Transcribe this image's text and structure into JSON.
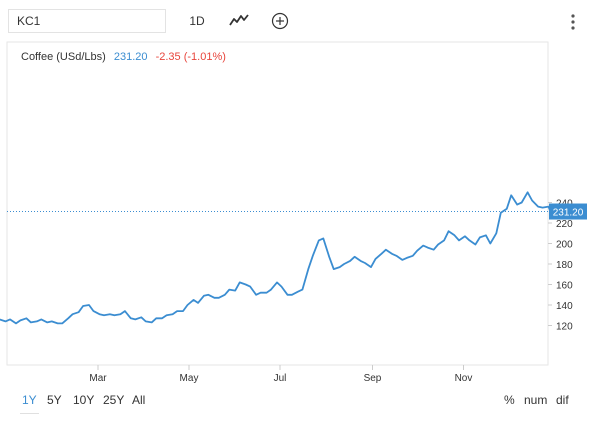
{
  "toolbar": {
    "symbol": "KC1",
    "period": "1D",
    "chart_type_icon": "line-chart-icon",
    "add_icon": "plus-circle-icon",
    "menu_icon": "vertical-dots-icon"
  },
  "legend": {
    "name": "Coffee (USd/Lbs)",
    "last": "231.20",
    "change": "-2.35 (-1.01%)"
  },
  "ranges": [
    "1Y",
    "5Y",
    "10Y",
    "25Y",
    "All"
  ],
  "active_range": "1Y",
  "modes": [
    "%",
    "num",
    "dif"
  ],
  "colors": {
    "line": "#3b8dd1",
    "negative": "#e8453c",
    "grid": "#e6e6e6",
    "axis_text": "#333333"
  },
  "chart_data": {
    "type": "line",
    "title": "Coffee (USd/Lbs)",
    "xlabel": "",
    "ylabel": "",
    "x_ticks": [
      "Mar",
      "May",
      "Jul",
      "Sep",
      "Nov"
    ],
    "y_ticks": [
      "120",
      "140",
      "160",
      "180",
      "200",
      "220",
      "240"
    ],
    "ylim": [
      100,
      250
    ],
    "last_value": 231.2,
    "last_value_label": "231.20",
    "grid": true,
    "series": [
      {
        "name": "Coffee (USd/Lbs)",
        "points": [
          [
            "2019-12-26",
            126
          ],
          [
            "2019-12-30",
            124
          ],
          [
            "2020-01-02",
            126
          ],
          [
            "2020-01-06",
            122
          ],
          [
            "2020-01-09",
            125
          ],
          [
            "2020-01-13",
            127
          ],
          [
            "2020-01-16",
            123
          ],
          [
            "2020-01-20",
            124
          ],
          [
            "2020-01-23",
            126
          ],
          [
            "2020-01-27",
            123
          ],
          [
            "2020-01-30",
            124
          ],
          [
            "2020-02-03",
            122
          ],
          [
            "2020-02-06",
            122
          ],
          [
            "2020-02-10",
            127
          ],
          [
            "2020-02-13",
            131
          ],
          [
            "2020-02-17",
            133
          ],
          [
            "2020-02-20",
            139
          ],
          [
            "2020-02-24",
            140
          ],
          [
            "2020-02-27",
            134
          ],
          [
            "2020-03-02",
            131
          ],
          [
            "2020-03-05",
            130
          ],
          [
            "2020-03-09",
            131
          ],
          [
            "2020-03-12",
            130
          ],
          [
            "2020-03-16",
            131
          ],
          [
            "2020-03-19",
            134
          ],
          [
            "2020-03-23",
            127
          ],
          [
            "2020-03-26",
            126
          ],
          [
            "2020-03-30",
            128
          ],
          [
            "2020-04-02",
            124
          ],
          [
            "2020-04-06",
            123
          ],
          [
            "2020-04-09",
            127
          ],
          [
            "2020-04-13",
            127
          ],
          [
            "2020-04-16",
            130
          ],
          [
            "2020-04-20",
            131
          ],
          [
            "2020-04-23",
            134
          ],
          [
            "2020-04-27",
            134
          ],
          [
            "2020-04-30",
            140
          ],
          [
            "2020-05-04",
            145
          ],
          [
            "2020-05-07",
            142
          ],
          [
            "2020-05-11",
            149
          ],
          [
            "2020-05-14",
            150
          ],
          [
            "2020-05-18",
            147
          ],
          [
            "2020-05-21",
            147
          ],
          [
            "2020-05-25",
            150
          ],
          [
            "2020-05-28",
            155
          ],
          [
            "2020-06-01",
            154
          ],
          [
            "2020-06-04",
            162
          ],
          [
            "2020-06-08",
            160
          ],
          [
            "2020-06-11",
            158
          ],
          [
            "2020-06-15",
            150
          ],
          [
            "2020-06-18",
            152
          ],
          [
            "2020-06-22",
            152
          ],
          [
            "2020-06-25",
            155
          ],
          [
            "2020-06-29",
            162
          ],
          [
            "2020-07-02",
            158
          ],
          [
            "2020-07-06",
            150
          ],
          [
            "2020-07-09",
            150
          ],
          [
            "2020-07-13",
            153
          ],
          [
            "2020-07-16",
            155
          ],
          [
            "2020-07-20",
            175
          ],
          [
            "2020-07-23",
            188
          ],
          [
            "2020-07-27",
            203
          ],
          [
            "2020-07-30",
            205
          ],
          [
            "2020-08-03",
            187
          ],
          [
            "2020-08-06",
            175
          ],
          [
            "2020-08-10",
            177
          ],
          [
            "2020-08-13",
            180
          ],
          [
            "2020-08-17",
            183
          ],
          [
            "2020-08-20",
            187
          ],
          [
            "2020-08-24",
            183
          ],
          [
            "2020-08-27",
            181
          ],
          [
            "2020-08-31",
            177
          ],
          [
            "2020-09-03",
            185
          ],
          [
            "2020-09-07",
            190
          ],
          [
            "2020-09-10",
            194
          ],
          [
            "2020-09-14",
            190
          ],
          [
            "2020-09-17",
            188
          ],
          [
            "2020-09-21",
            184
          ],
          [
            "2020-09-24",
            186
          ],
          [
            "2020-09-28",
            188
          ],
          [
            "2020-10-01",
            193
          ],
          [
            "2020-10-05",
            198
          ],
          [
            "2020-10-08",
            196
          ],
          [
            "2020-10-12",
            194
          ],
          [
            "2020-10-15",
            199
          ],
          [
            "2020-10-19",
            203
          ],
          [
            "2020-10-22",
            212
          ],
          [
            "2020-10-26",
            208
          ],
          [
            "2020-10-29",
            203
          ],
          [
            "2020-11-02",
            207
          ],
          [
            "2020-11-05",
            203
          ],
          [
            "2020-11-09",
            199
          ],
          [
            "2020-11-12",
            206
          ],
          [
            "2020-11-16",
            208
          ],
          [
            "2020-11-19",
            200
          ],
          [
            "2020-11-23",
            210
          ],
          [
            "2020-11-26",
            230
          ],
          [
            "2020-11-30",
            234
          ],
          [
            "2020-12-03",
            247
          ],
          [
            "2020-12-07",
            238
          ],
          [
            "2020-12-10",
            240
          ],
          [
            "2020-12-14",
            250
          ],
          [
            "2020-12-17",
            242
          ],
          [
            "2020-12-21",
            236
          ],
          [
            "2020-12-24",
            235
          ],
          [
            "2020-12-28",
            236
          ],
          [
            "2020-12-31",
            225
          ],
          [
            "2021-01-04",
            233
          ],
          [
            "2021-01-07",
            231.2
          ]
        ]
      }
    ]
  }
}
